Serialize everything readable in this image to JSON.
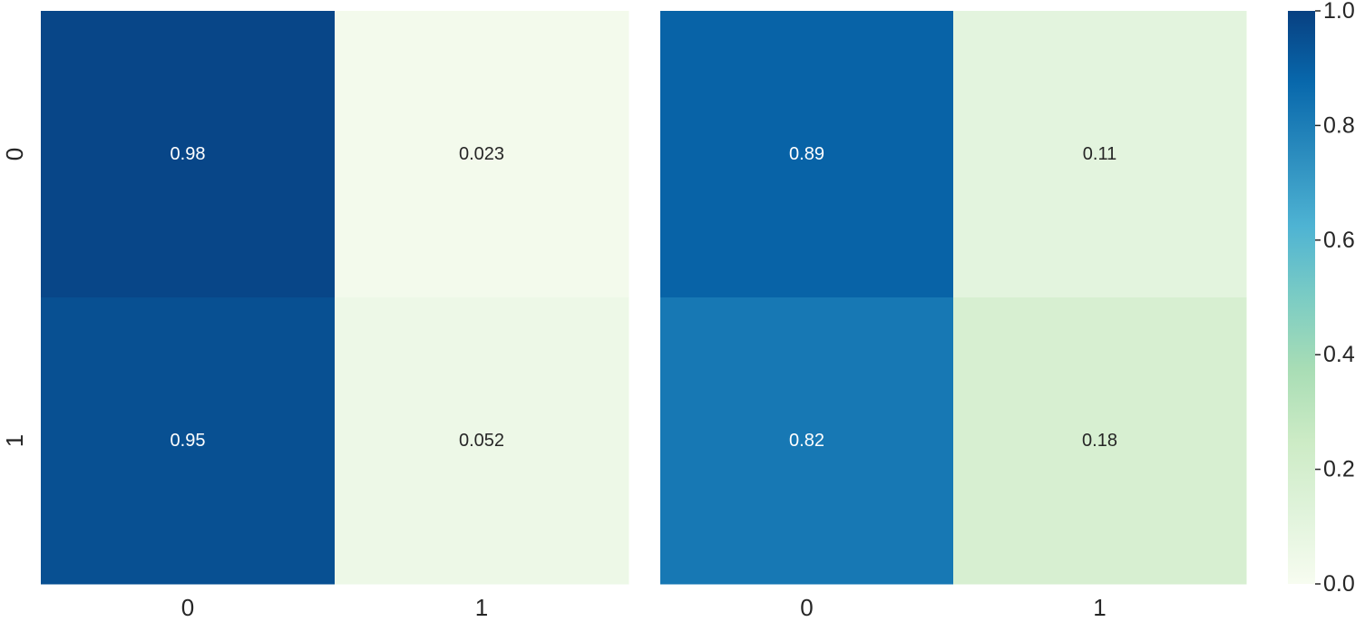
{
  "chart_data": {
    "type": "heatmap",
    "colormap": "GnBu",
    "vmin": 0.0,
    "vmax": 1.0,
    "panels": [
      {
        "row_labels": [
          "0",
          "1"
        ],
        "col_labels": [
          "0",
          "1"
        ],
        "values": [
          [
            0.98,
            0.023
          ],
          [
            0.95,
            0.052
          ]
        ],
        "annotations": [
          [
            "0.98",
            "0.023"
          ],
          [
            "0.95",
            "0.052"
          ]
        ]
      },
      {
        "row_labels": [],
        "col_labels": [
          "0",
          "1"
        ],
        "values": [
          [
            0.89,
            0.11
          ],
          [
            0.82,
            0.18
          ]
        ],
        "annotations": [
          [
            "0.89",
            "0.11"
          ],
          [
            "0.82",
            "0.18"
          ]
        ]
      }
    ],
    "colorbar": {
      "ticks": [
        "0.0",
        "0.2",
        "0.4",
        "0.6",
        "0.8",
        "1.0"
      ],
      "tick_values": [
        0.0,
        0.2,
        0.4,
        0.6,
        0.8,
        1.0
      ]
    }
  }
}
